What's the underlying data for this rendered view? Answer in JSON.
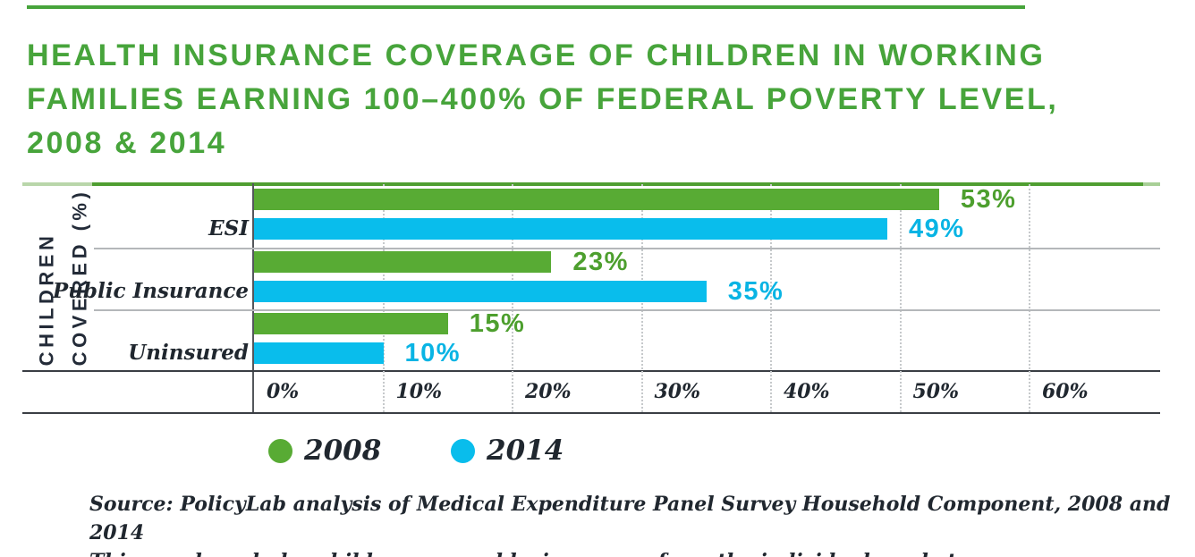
{
  "header": {
    "title_line1": "HEALTH INSURANCE COVERAGE OF CHILDREN IN WORKING",
    "title_line2": "FAMILIES EARNING 100–400% OF FEDERAL POVERTY LEVEL,",
    "title_line3": "2008 & 2014",
    "title_color": "#47a43b"
  },
  "chart_data": {
    "type": "bar",
    "orientation": "horizontal",
    "title": "HEALTH INSURANCE COVERAGE OF CHILDREN IN WORKING FAMILIES EARNING 100–400% OF FEDERAL POVERTY LEVEL, 2008 & 2014",
    "ylabel": "CHILDREN COVERED (%)",
    "ylabel_lines": [
      "CHILDREN",
      "COVERED (%)"
    ],
    "categories": [
      "ESI",
      "Public Insurance",
      "Uninsured"
    ],
    "series": [
      {
        "name": "2008",
        "color": "#58ab34",
        "label_color": "#4d9f2e",
        "values": [
          53,
          23,
          15
        ],
        "labels": [
          "53%",
          "23%",
          "15%"
        ]
      },
      {
        "name": "2014",
        "color": "#09bdec",
        "label_color": "#09b4e4",
        "values": [
          49,
          35,
          10
        ],
        "labels": [
          "49%",
          "35%",
          "10%"
        ]
      }
    ],
    "x_ticks": [
      "0%",
      "10%",
      "20%",
      "30%",
      "40%",
      "50%",
      "60%"
    ],
    "x_tick_values": [
      0,
      10,
      20,
      30,
      40,
      50,
      60
    ],
    "xlim": [
      0,
      70
    ],
    "grid": "dotted-vertical",
    "legend_position": "below-left"
  },
  "legend": {
    "items": [
      {
        "label": "2008",
        "color": "#58ab34"
      },
      {
        "label": "2014",
        "color": "#09bdec"
      }
    ]
  },
  "source": {
    "line1": "Source: PolicyLab analysis of Medical Expenditure Panel Survey Household Component, 2008 and 2014",
    "line2": "This graph excludes children covered by insurance from the individual market."
  },
  "colors": {
    "title_green": "#47a43b",
    "bar_green": "#58ab34",
    "bar_blue": "#09bdec",
    "rule_green": "#4f9e31",
    "rule_green_light": "#b9d6aa",
    "dark_text": "#20272f",
    "axis_line": "#3a3e44",
    "separator": "#b4b7ba"
  }
}
